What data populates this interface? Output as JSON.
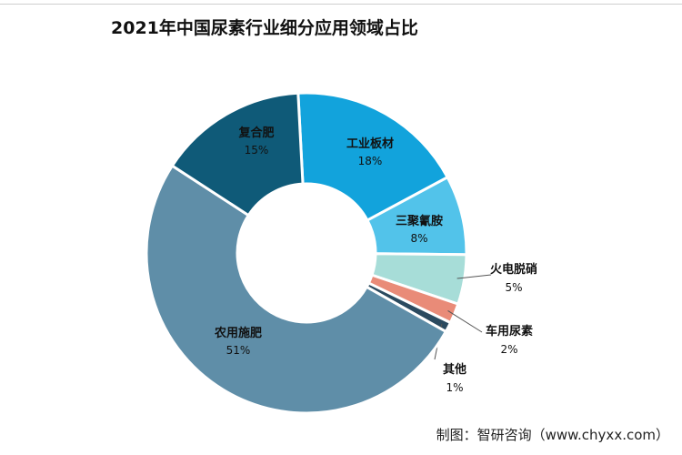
{
  "title": "2021年中国尿素行业细分应用领域占比",
  "footer": "制图：智研咨询（www.chyxx.com）",
  "chart_data": {
    "type": "pie",
    "donut": true,
    "title": "2021年中国尿素行业细分应用领域占比",
    "start_angle_deg": -3,
    "slices": [
      {
        "label": "工业板材",
        "value": 18,
        "display": "18%",
        "color": "#12a3dc",
        "label_color": "#111111",
        "label_position": "inside"
      },
      {
        "label": "三聚氰胺",
        "value": 8,
        "display": "8%",
        "color": "#52c3ea",
        "label_color": "#111111",
        "label_position": "inside"
      },
      {
        "label": "火电脱硝",
        "value": 5,
        "display": "5%",
        "color": "#a7ddd8",
        "label_color": "#111111",
        "label_position": "outside"
      },
      {
        "label": "车用尿素",
        "value": 2,
        "display": "2%",
        "color": "#e98b78",
        "label_color": "#111111",
        "label_position": "outside"
      },
      {
        "label": "其他",
        "value": 1,
        "display": "1%",
        "color": "#2b4a5f",
        "label_color": "#111111",
        "label_position": "outside"
      },
      {
        "label": "农用施肥",
        "value": 51,
        "display": "51%",
        "color": "#5f8ea8",
        "label_color": "#111111",
        "label_position": "inside"
      },
      {
        "label": "复合肥",
        "value": 15,
        "display": "15%",
        "color": "#0f5a78",
        "label_color": "#111111",
        "label_position": "inside"
      }
    ]
  }
}
